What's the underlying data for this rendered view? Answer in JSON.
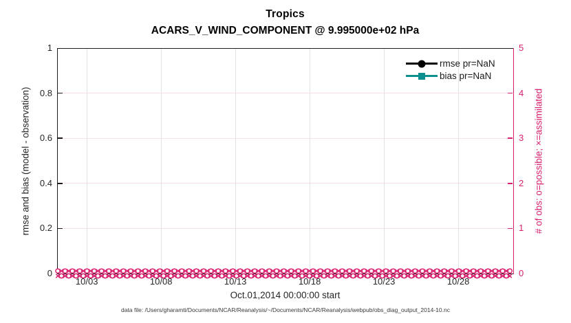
{
  "colors": {
    "magenta": "#d81e6d",
    "teal": "#0e8f8f",
    "axis": "#1a1a1a",
    "grid_vertical": "#e3e3e3",
    "grid_horizontal": "#f6dfe9",
    "rmse": "#000000"
  },
  "chart_data": {
    "type": "line",
    "title": "Tropics",
    "subtitle": "ACARS_V_WIND_COMPONENT @ 9.995000e+02 hPa",
    "xlabel": "Oct.01,2014 00:00:00 start",
    "left_axis": {
      "label": "rmse and bias (model - observation)",
      "ticks": [
        "0",
        "0.2",
        "0.4",
        "0.6",
        "0.8",
        "1"
      ],
      "range": [
        0,
        1
      ]
    },
    "right_axis": {
      "label": "# of obs: o=possible; ×=assimilated",
      "ticks": [
        "0",
        "1",
        "2",
        "3",
        "4",
        "5"
      ],
      "range": [
        0,
        5
      ]
    },
    "x_axis": {
      "tick_labels": [
        "10/03",
        "10/08",
        "10/13",
        "10/18",
        "10/23",
        "10/28"
      ],
      "tick_days": [
        3,
        8,
        13,
        18,
        23,
        28
      ],
      "range_days": [
        1,
        31.7
      ],
      "start": "Oct.01,2014 00:00:00"
    },
    "grid": {
      "vertical": true,
      "horizontal": true
    },
    "series": [
      {
        "name": "rmse pr=NaN",
        "marker": "filled-circle",
        "color": "#000000",
        "values": "NaN - no curve plotted"
      },
      {
        "name": "bias pr=NaN",
        "marker": "filled-square",
        "color": "#0e8f8f",
        "values": "NaN - no curve plotted"
      },
      {
        "name": "# of obs possible (o)",
        "marker": "o",
        "color": "#d81e6d",
        "constant_value": 0,
        "extent_days": [
          1,
          31.7
        ],
        "note": "dense o markers at 0 on right axis for every cycle in October"
      },
      {
        "name": "# of obs assimilated (×)",
        "marker": "×",
        "color": "#d81e6d",
        "constant_value": 0,
        "extent_days": [
          1,
          31.7
        ],
        "note": "dense × markers at 0 on right axis for every cycle in October"
      }
    ],
    "legend": {
      "position": "top-right-inside",
      "border": false,
      "items": [
        {
          "label": "rmse pr=NaN",
          "marker": "circle",
          "color": "#000000"
        },
        {
          "label": "bias pr=NaN",
          "marker": "square",
          "color": "#0e8f8f"
        }
      ]
    }
  },
  "footnote": "data file: /Users/gharamti/Documents/NCAR/Reanalysis/~/Documents/NCAR/Reanalysis/webpub/obs_diag_output_2014-10.nc"
}
